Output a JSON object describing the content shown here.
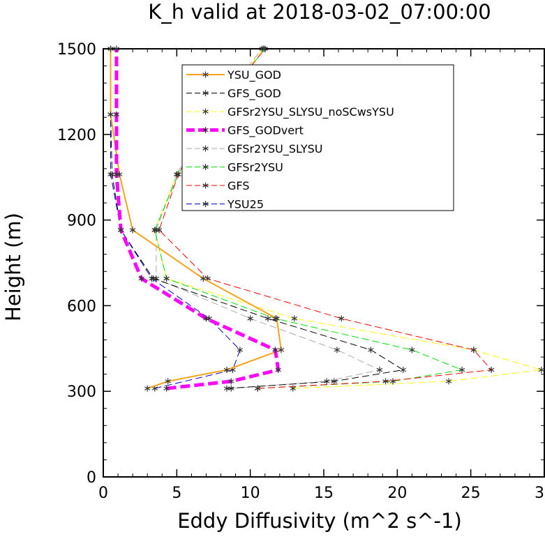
{
  "chart_data": {
    "type": "line",
    "title": "K_h valid at 2018-03-02_07:00:00",
    "xlabel": "Eddy Diffusivity (m^2 s^-1)",
    "ylabel": "Height (m)",
    "xlim": [
      0,
      30
    ],
    "ylim": [
      0,
      1500
    ],
    "xticks": [
      "0",
      "5",
      "10",
      "15",
      "20",
      "25",
      "30"
    ],
    "yticks": [
      "0",
      "300",
      "600",
      "900",
      "1200",
      "1500"
    ],
    "legend_position": "top-center",
    "series": [
      {
        "name": "YSU_GOD",
        "color": "#f7a21b",
        "dash": "solid",
        "width": 2,
        "points": [
          [
            3.0,
            310
          ],
          [
            4.4,
            335
          ],
          [
            8.4,
            375
          ],
          [
            12.1,
            445
          ],
          [
            11.8,
            555
          ],
          [
            6.8,
            695
          ],
          [
            2.0,
            865
          ],
          [
            1.1,
            1060
          ],
          [
            0.5,
            1270
          ],
          [
            0.5,
            1500
          ]
        ]
      },
      {
        "name": "GFS_GOD",
        "color": "#000000",
        "dash": "dashed",
        "width": 1,
        "points": [
          [
            8.4,
            310
          ],
          [
            15.7,
            335
          ],
          [
            20.4,
            375
          ],
          [
            18.2,
            445
          ],
          [
            11.2,
            555
          ],
          [
            3.4,
            695
          ],
          [
            1.2,
            865
          ],
          [
            0.6,
            1060
          ],
          [
            0.5,
            1270
          ],
          [
            0.5,
            1500
          ]
        ]
      },
      {
        "name": "GFSr2YSU_SLYSU_noSCwsYSU",
        "color": "#ffff00",
        "dash": "dashed",
        "width": 1,
        "points": [
          [
            12.9,
            310
          ],
          [
            23.5,
            335
          ],
          [
            29.8,
            375
          ],
          [
            25.2,
            445
          ],
          [
            13.0,
            555
          ],
          [
            4.3,
            695
          ],
          [
            3.5,
            865
          ],
          [
            5.0,
            1060
          ],
          [
            7.4,
            1270
          ],
          [
            10.9,
            1500
          ]
        ]
      },
      {
        "name": "GFS_GODvert",
        "color": "#ff00ff",
        "dash": "dashed",
        "width": 5,
        "points": [
          [
            4.3,
            310
          ],
          [
            8.7,
            335
          ],
          [
            11.9,
            375
          ],
          [
            11.7,
            445
          ],
          [
            7.0,
            555
          ],
          [
            2.6,
            695
          ],
          [
            1.2,
            865
          ],
          [
            0.9,
            1060
          ],
          [
            0.9,
            1270
          ],
          [
            0.9,
            1500
          ]
        ]
      },
      {
        "name": "GFSr2YSU_SLYSU",
        "color": "#aaaaaa",
        "dash": "dashed",
        "width": 1,
        "points": [
          [
            8.7,
            310
          ],
          [
            15.2,
            335
          ],
          [
            18.8,
            375
          ],
          [
            15.9,
            445
          ],
          [
            10.0,
            555
          ],
          [
            3.6,
            695
          ],
          [
            3.6,
            865
          ],
          [
            5.0,
            1060
          ],
          [
            7.3,
            1270
          ],
          [
            10.8,
            1500
          ]
        ]
      },
      {
        "name": "GFSr2YSU",
        "color": "#00dd00",
        "dash": "dashed",
        "width": 1,
        "points": [
          [
            10.5,
            310
          ],
          [
            19.7,
            335
          ],
          [
            24.4,
            375
          ],
          [
            21.0,
            445
          ],
          [
            11.7,
            555
          ],
          [
            4.3,
            695
          ],
          [
            3.5,
            865
          ],
          [
            5.1,
            1060
          ],
          [
            7.4,
            1270
          ],
          [
            11.0,
            1500
          ]
        ]
      },
      {
        "name": "GFS",
        "color": "#ff0000",
        "dash": "dashed",
        "width": 1,
        "points": [
          [
            10.5,
            310
          ],
          [
            19.2,
            335
          ],
          [
            26.4,
            375
          ],
          [
            25.2,
            445
          ],
          [
            16.2,
            555
          ],
          [
            7.1,
            695
          ],
          [
            3.8,
            865
          ],
          [
            5.1,
            1060
          ],
          [
            7.4,
            1270
          ],
          [
            11.0,
            1500
          ]
        ]
      },
      {
        "name": "YSU25",
        "color": "#0000cc",
        "dash": "dashed",
        "width": 1,
        "points": [
          [
            3.5,
            310
          ],
          [
            8.8,
            375
          ],
          [
            9.3,
            445
          ],
          [
            7.2,
            555
          ],
          [
            3.3,
            695
          ],
          [
            1.2,
            865
          ],
          [
            0.5,
            1060
          ],
          [
            0.5,
            1270
          ],
          [
            0.5,
            1500
          ]
        ]
      }
    ]
  }
}
